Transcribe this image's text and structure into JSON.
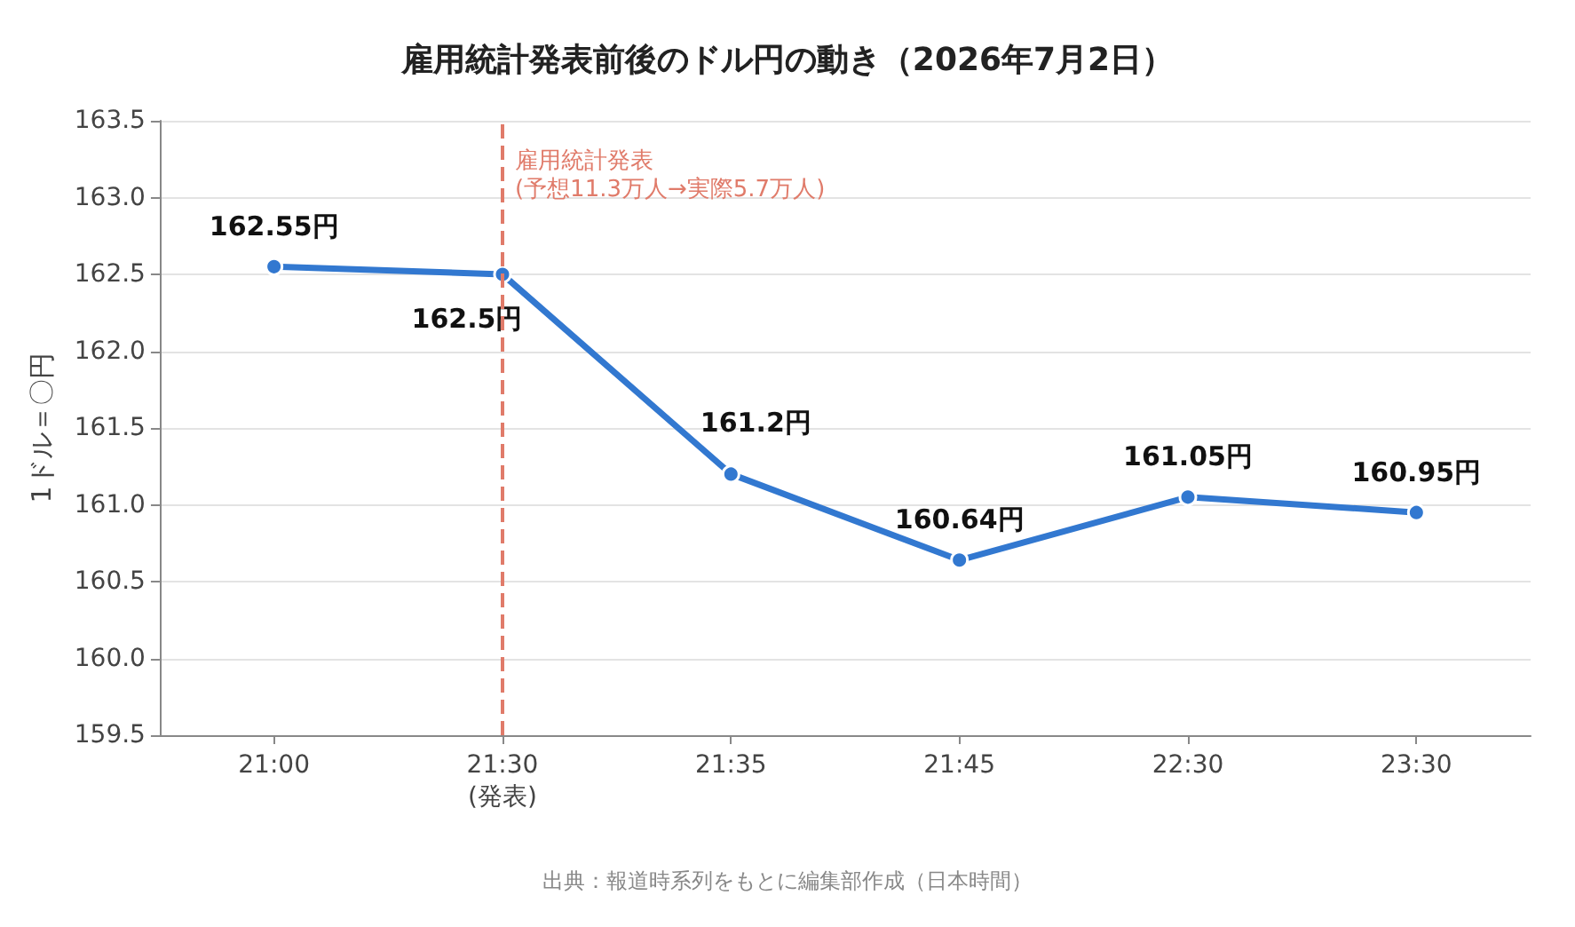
{
  "chart_data": {
    "type": "line",
    "title": "雇用統計発表前後のドル円の動き（2026年7月2日）",
    "ylabel": "1ドル＝〇円",
    "categories": [
      "21:00",
      "21:30\n(発表)",
      "21:35",
      "21:45",
      "22:30",
      "23:30"
    ],
    "series": [
      {
        "color": "#3278d0",
        "values": [
          162.55,
          162.5,
          161.2,
          160.64,
          161.05,
          160.95
        ],
        "value_labels": [
          "162.55円",
          "162.5円",
          "161.2円",
          "160.64円",
          "161.05円",
          "160.95円"
        ]
      }
    ],
    "ylim": [
      159.5,
      163.5
    ],
    "yticks": [
      159.5,
      {
        "value": 160,
        "label": "160.0"
      },
      160.5,
      {
        "value": 161,
        "label": "161.0"
      },
      161.5,
      {
        "value": 162,
        "label": "162.0"
      },
      162.5,
      {
        "value": 163,
        "label": "163.0"
      },
      163.5
    ],
    "grid": "y",
    "marker": "circle",
    "line_style": "solid",
    "ref_lines": [
      {
        "axis": "x",
        "value": "21:30\n(発表)",
        "label": "雇用統計発表\n(予想11.3万人→実際5.7万人)",
        "color": "#e07b6a",
        "line_style": "dashed"
      }
    ],
    "annotations": [
      "出典：報道時系列をもとに編集部作成（日本時間）"
    ]
  }
}
